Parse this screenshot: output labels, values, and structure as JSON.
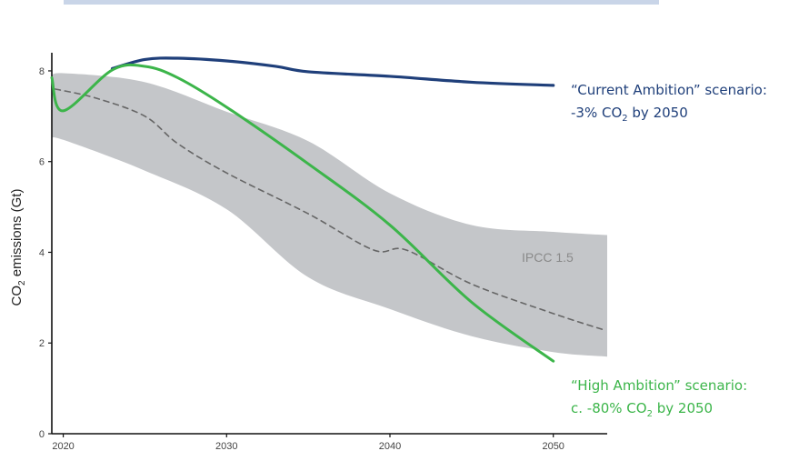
{
  "colors": {
    "current": "#1f3f7a",
    "high": "#3cb54a",
    "band": "#c4c6c9",
    "median": "#666666",
    "axis": "#111111"
  },
  "chart_data": {
    "type": "line",
    "ylabel": "CO2 emissions (Gt)",
    "ylabel_text": "CO",
    "ylabel_sub": "2",
    "ylabel_rest": " emissions (Gt)",
    "xlim": [
      2019.3,
      2053.3
    ],
    "ylim": [
      0,
      8.4
    ],
    "xticks": [
      2020,
      2030,
      2040,
      2050
    ],
    "yticks": [
      0,
      2,
      4,
      6,
      8
    ],
    "series": [
      {
        "key": "current",
        "x": [
          2023,
          2025,
          2027,
          2030,
          2033,
          2035,
          2040,
          2045,
          2050
        ],
        "y": [
          8.05,
          8.25,
          8.28,
          8.22,
          8.1,
          7.98,
          7.88,
          7.75,
          7.68
        ]
      },
      {
        "key": "high",
        "x": [
          2019.3,
          2020,
          2023,
          2025,
          2027,
          2030,
          2035,
          2040,
          2045,
          2050
        ],
        "y": [
          7.85,
          7.12,
          8.02,
          8.1,
          7.85,
          7.2,
          5.95,
          4.6,
          2.9,
          1.6
        ]
      },
      {
        "key": "median",
        "x": [
          2019.5,
          2022,
          2025,
          2027,
          2030,
          2035,
          2039,
          2041,
          2045,
          2050,
          2053
        ],
        "y": [
          7.6,
          7.4,
          7.0,
          6.4,
          5.75,
          4.85,
          4.05,
          4.05,
          3.3,
          2.65,
          2.3
        ]
      }
    ],
    "band": {
      "label": "IPCC 1.5",
      "x": [
        2019.3,
        2020,
        2025,
        2030,
        2035,
        2040,
        2045,
        2050,
        2053.3
      ],
      "upper": [
        7.85,
        7.95,
        7.75,
        7.1,
        6.45,
        5.3,
        4.6,
        4.45,
        4.38
      ],
      "lower": [
        6.5,
        6.48,
        5.8,
        4.95,
        3.45,
        2.75,
        2.15,
        1.8,
        1.7
      ]
    },
    "annotations": {
      "current": {
        "line1": "“Current Ambition” scenario:",
        "line2_prefix": "-3% CO",
        "line2_sub": "2",
        "line2_suffix": " by 2050"
      },
      "high": {
        "line1": "“High Ambition” scenario:",
        "line2_prefix": "c. -80% CO",
        "line2_sub": "2",
        "line2_suffix": " by 2050"
      }
    }
  }
}
